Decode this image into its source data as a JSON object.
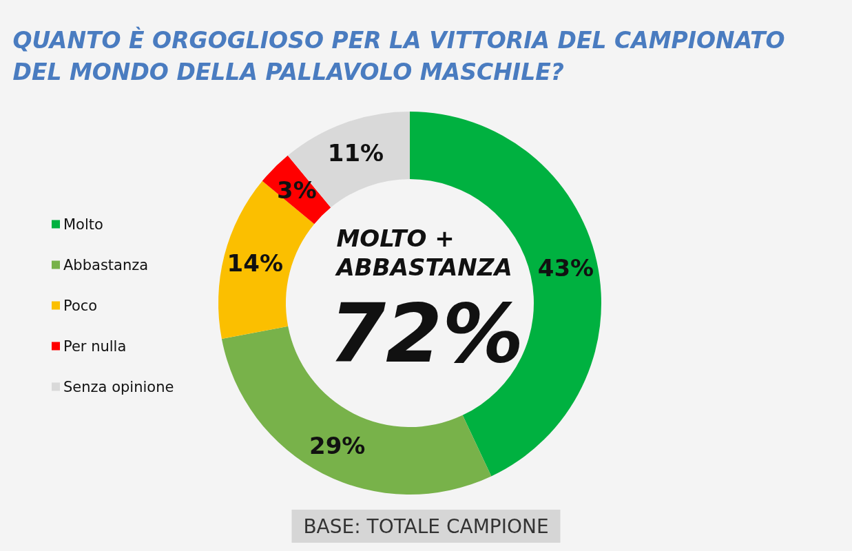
{
  "chart_data": {
    "type": "donut",
    "title": "QUANTO È ORGOGLIOSO PER LA VITTORIA DEL CAMPIONATO DEL MONDO DELLA PALLAVOLO MASCHILE?",
    "categories": [
      "Molto",
      "Abbastanza",
      "Poco",
      "Per nulla",
      "Senza opinione"
    ],
    "values": [
      43,
      29,
      14,
      3,
      11
    ],
    "colors": [
      "#00b140",
      "#78b24a",
      "#fbbf00",
      "#ff0000",
      "#d9d9d9"
    ],
    "value_labels": [
      "43%",
      "29%",
      "14%",
      "3%",
      "11%"
    ],
    "legend": "left",
    "annotations": [
      "MOLTO + ABBASTANZA",
      "72%",
      "BASE: TOTALE CAMPIONE"
    ]
  }
}
